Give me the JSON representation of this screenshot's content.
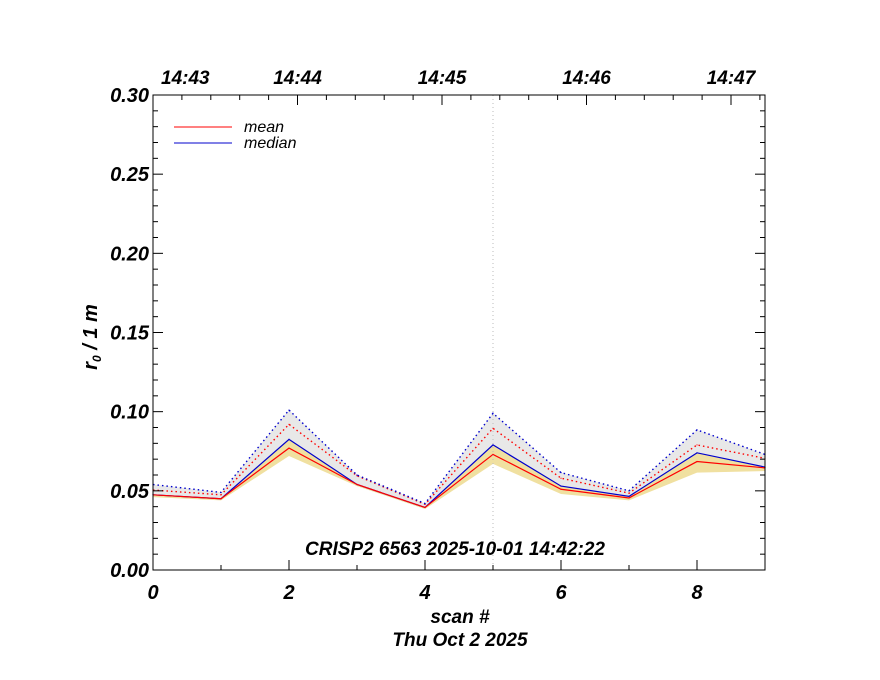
{
  "chart_data": {
    "type": "line",
    "ylabel_main": "r",
    "ylabel_sub": "0",
    "ylabel_rest": " / 1 m",
    "xlabel": "scan #",
    "date_label": "Thu Oct  2 2025",
    "annotation": "CRISP2 6563 2025-10-01 14:42:22",
    "xlim": [
      0,
      9
    ],
    "ylim": [
      0,
      0.3
    ],
    "x_ticks": [
      0,
      2,
      4,
      6,
      8
    ],
    "x_tick_labels": [
      "0",
      "2",
      "4",
      "6",
      "8"
    ],
    "y_ticks": [
      0,
      0.05,
      0.1,
      0.15,
      0.2,
      0.25,
      0.3
    ],
    "y_tick_labels": [
      "0.00",
      "0.05",
      "0.10",
      "0.15",
      "0.20",
      "0.25",
      "0.30"
    ],
    "top_axis": {
      "ticks": [
        0,
        2.125,
        4.25,
        6.375,
        8.5
      ],
      "labels": [
        "14:43",
        "14:44",
        "14:45",
        "14:46",
        "14:47"
      ]
    },
    "vertical_marker_x": 5,
    "x": [
      0,
      1,
      2,
      3,
      4,
      5,
      6,
      7,
      8,
      9
    ],
    "series": [
      {
        "name": "mean",
        "color": "#ff0000",
        "style": "solid",
        "values": [
          0.0475,
          0.045,
          0.077,
          0.054,
          0.0395,
          0.073,
          0.051,
          0.0455,
          0.0685,
          0.0645
        ]
      },
      {
        "name": "median",
        "color": "#0000cc",
        "style": "solid",
        "values": [
          0.0475,
          0.045,
          0.0825,
          0.054,
          0.0395,
          0.079,
          0.053,
          0.0465,
          0.074,
          0.065
        ]
      },
      {
        "color": "#ff0000",
        "style": "dotted",
        "values": [
          0.0505,
          0.0475,
          0.092,
          0.0595,
          0.0415,
          0.0895,
          0.058,
          0.0485,
          0.079,
          0.0705
        ]
      },
      {
        "color": "#0000cc",
        "style": "dotted",
        "values": [
          0.054,
          0.049,
          0.101,
          0.06,
          0.042,
          0.099,
          0.0615,
          0.05,
          0.0885,
          0.073
        ]
      }
    ],
    "bands": [
      {
        "color": "#e8e8e8",
        "lower": [
          0.0475,
          0.045,
          0.0825,
          0.054,
          0.0395,
          0.079,
          0.053,
          0.0465,
          0.074,
          0.065
        ],
        "upper": [
          0.054,
          0.049,
          0.101,
          0.06,
          0.042,
          0.099,
          0.0615,
          0.05,
          0.0885,
          0.073
        ]
      },
      {
        "color": "#f0e0a0",
        "lower": [
          0.046,
          0.044,
          0.072,
          0.053,
          0.0385,
          0.067,
          0.048,
          0.044,
          0.0615,
          0.0625
        ],
        "upper": [
          0.0475,
          0.045,
          0.0825,
          0.054,
          0.0395,
          0.079,
          0.053,
          0.0465,
          0.074,
          0.065
        ]
      }
    ],
    "legend_position": "top-left",
    "grid": false
  }
}
